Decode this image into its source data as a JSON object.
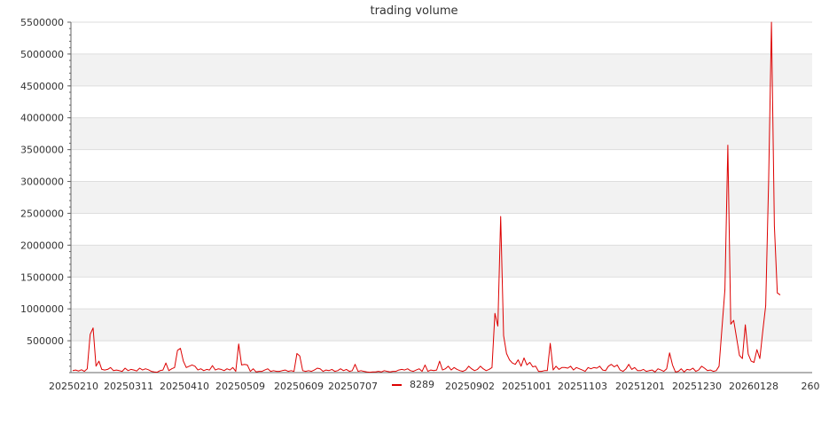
{
  "chart_data": {
    "type": "line",
    "title": "trading volume",
    "xlabel": "",
    "ylabel": "",
    "ylim": [
      0,
      5500000
    ],
    "grid": true,
    "legend_position": "bottom-center",
    "colors": {
      "line": "#dd0000",
      "band": "#f2f2f2",
      "grid": "#dddddd",
      "axis": "#666666"
    },
    "y_ticks": [
      {
        "value": 500000,
        "label": "500000"
      },
      {
        "value": 1000000,
        "label": "1000000"
      },
      {
        "value": 1500000,
        "label": "1500000"
      },
      {
        "value": 2000000,
        "label": "2000000"
      },
      {
        "value": 2500000,
        "label": "2500000"
      },
      {
        "value": 3000000,
        "label": "3000000"
      },
      {
        "value": 3500000,
        "label": "3500000"
      },
      {
        "value": 4000000,
        "label": "4000000"
      },
      {
        "value": 4500000,
        "label": "4500000"
      },
      {
        "value": 5000000,
        "label": "5000000"
      },
      {
        "value": 5500000,
        "label": "5500000"
      }
    ],
    "x_ticks": [
      "20250210",
      "20250311",
      "20250410",
      "20250509",
      "20250609",
      "20250707",
      "20250902",
      "20251001",
      "20251103",
      "20251201",
      "20251230",
      "20260128",
      "260"
    ],
    "series": [
      {
        "name": "8289",
        "values": [
          30000,
          40000,
          25000,
          45000,
          20000,
          60000,
          600000,
          700000,
          100000,
          180000,
          50000,
          40000,
          50000,
          80000,
          30000,
          40000,
          30000,
          20000,
          70000,
          30000,
          50000,
          40000,
          25000,
          70000,
          40000,
          60000,
          45000,
          20000,
          10000,
          5000,
          30000,
          40000,
          150000,
          30000,
          60000,
          80000,
          350000,
          380000,
          180000,
          80000,
          100000,
          120000,
          100000,
          40000,
          60000,
          30000,
          50000,
          40000,
          110000,
          40000,
          60000,
          50000,
          30000,
          60000,
          40000,
          80000,
          20000,
          450000,
          120000,
          130000,
          120000,
          20000,
          60000,
          10000,
          20000,
          20000,
          40000,
          60000,
          20000,
          30000,
          20000,
          20000,
          30000,
          40000,
          20000,
          30000,
          20000,
          300000,
          260000,
          30000,
          20000,
          30000,
          20000,
          40000,
          70000,
          60000,
          20000,
          40000,
          30000,
          50000,
          20000,
          30000,
          60000,
          30000,
          50000,
          20000,
          30000,
          130000,
          20000,
          30000,
          20000,
          10000,
          5000,
          10000,
          10000,
          20000,
          10000,
          30000,
          20000,
          10000,
          20000,
          20000,
          40000,
          50000,
          40000,
          60000,
          30000,
          20000,
          40000,
          60000,
          20000,
          120000,
          20000,
          40000,
          30000,
          40000,
          180000,
          40000,
          60000,
          100000,
          40000,
          80000,
          50000,
          30000,
          20000,
          40000,
          100000,
          60000,
          30000,
          50000,
          100000,
          60000,
          30000,
          50000,
          80000,
          930000,
          730000,
          2450000,
          580000,
          300000,
          200000,
          150000,
          130000,
          200000,
          100000,
          230000,
          120000,
          160000,
          90000,
          100000,
          20000,
          20000,
          30000,
          30000,
          460000,
          40000,
          100000,
          50000,
          80000,
          80000,
          70000,
          100000,
          40000,
          80000,
          60000,
          40000,
          20000,
          80000,
          60000,
          80000,
          70000,
          100000,
          40000,
          30000,
          100000,
          130000,
          90000,
          120000,
          40000,
          20000,
          60000,
          130000,
          50000,
          80000,
          30000,
          30000,
          50000,
          20000,
          30000,
          40000,
          10000,
          60000,
          40000,
          20000,
          60000,
          310000,
          120000,
          10000,
          20000,
          60000,
          10000,
          50000,
          40000,
          70000,
          20000,
          40000,
          100000,
          70000,
          30000,
          40000,
          20000,
          30000,
          100000,
          700000,
          1300000,
          3570000,
          760000,
          820000,
          550000,
          270000,
          220000,
          750000,
          290000,
          180000,
          160000,
          360000,
          220000,
          650000,
          1050000,
          3000000,
          5500000,
          2300000,
          1250000,
          1220000
        ]
      }
    ]
  }
}
